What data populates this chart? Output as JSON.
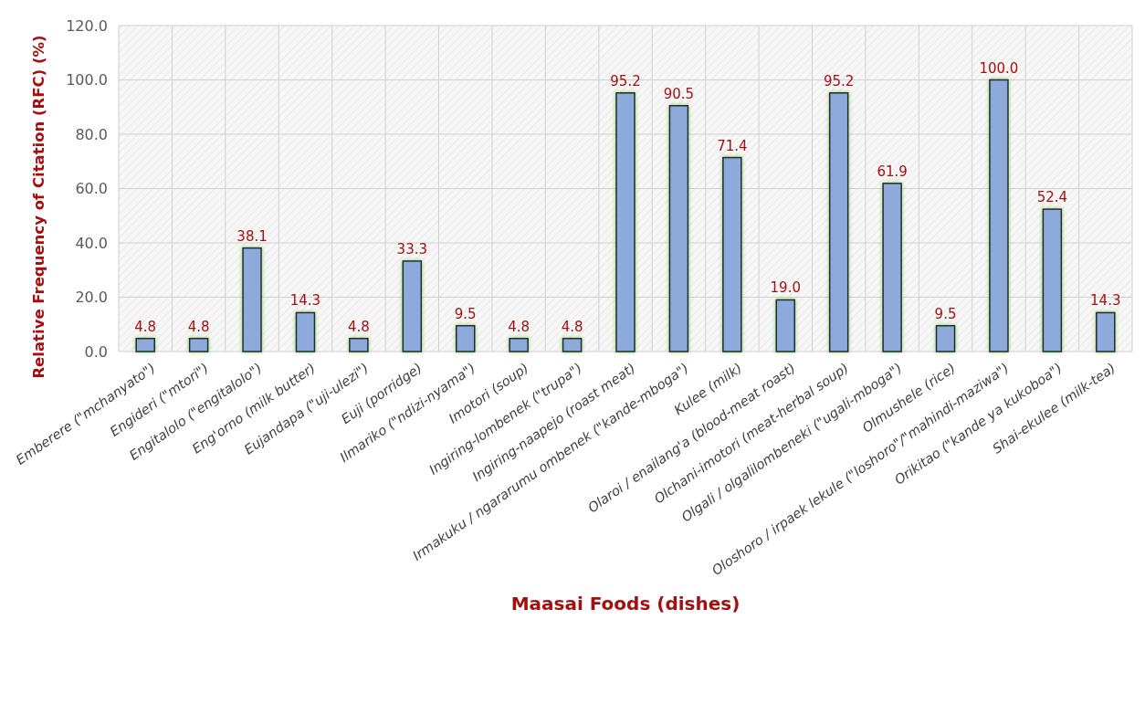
{
  "chart_data": {
    "type": "bar",
    "xlabel": "Maasai Foods (dishes)",
    "ylabel": "Relative Frequency of Citation (RFC) (%)",
    "categories": [
      "Emberere (\"mchanyato\")",
      "Engideri (\"mtori\")",
      "Engitalolo (\"engitalolo\")",
      "Eng'orno (milk butter)",
      "Eujandapa (\"uji-ulezi\")",
      "Euji (porridge)",
      "Ilmariko (\"ndizi-nyama\")",
      "Imotori (soup)",
      "Ingiring-lombenek (\"trupa\")",
      "Ingiring-naapejo (roast meat)",
      "Irmakuku / ngararumu ombenek (\"kande-mboga\")",
      "Kulee (milk)",
      "Olaroi / enailang'a (blood-meat roast)",
      "Olchani-imotori (meat-herbal soup)",
      "Olgali / olgalilombeneki (\"ugali-mboga\")",
      "Olmushele (rice)",
      "Oloshoro / irpaek lekule (\"loshoro\"/\"mahindi-maziwa\")",
      "Orikitao (\"kande ya kukoboa\")",
      "Shai-ekulee (milk-tea)"
    ],
    "values": [
      4.8,
      4.8,
      38.1,
      14.3,
      4.8,
      33.3,
      9.5,
      4.8,
      4.8,
      95.2,
      90.5,
      71.4,
      19.0,
      95.2,
      61.9,
      9.5,
      100.0,
      52.4,
      14.3
    ],
    "value_labels": [
      "4.8",
      "4.8",
      "38.1",
      "14.3",
      "4.8",
      "33.3",
      "9.5",
      "4.8",
      "4.8",
      "95.2",
      "90.5",
      "71.4",
      "19.0",
      "95.2",
      "61.9",
      "9.5",
      "100.0",
      "52.4",
      "14.3"
    ],
    "color": "#8eaadb",
    "ylim": [
      0,
      120
    ],
    "yticks": [
      {
        "value": 0,
        "label": "0.0"
      },
      {
        "value": 20,
        "label": "20.0"
      },
      {
        "value": 40,
        "label": "40.0"
      },
      {
        "value": 60,
        "label": "60.0"
      },
      {
        "value": 80,
        "label": "80.0"
      },
      {
        "value": 100,
        "label": "100.0"
      },
      {
        "value": 120,
        "label": "120.0"
      }
    ],
    "grid": true
  }
}
